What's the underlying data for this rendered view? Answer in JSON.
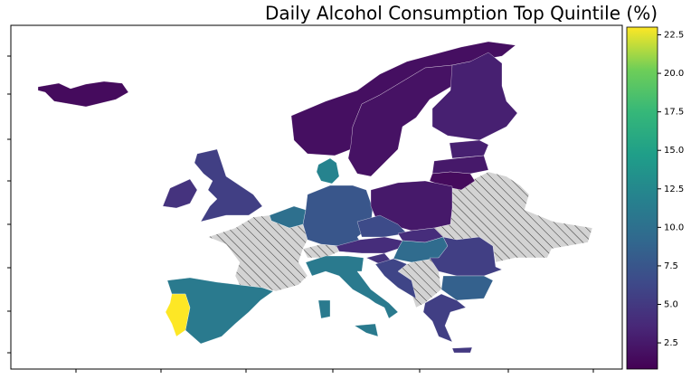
{
  "chart_data": {
    "type": "choropleth",
    "title": "Daily Alcohol Consumption Top Quintile (%)",
    "colormap": "viridis",
    "values": [
      1.5,
      1.8,
      2.0,
      3.0,
      3.0,
      2.5,
      1.5,
      12.0,
      5.5,
      4.5,
      10.0,
      7.5,
      2.5,
      6.5,
      4.0,
      4.0,
      9.5,
      5.5,
      8.5,
      5.5,
      5.0,
      11.0,
      11.0,
      11.0,
      4.5,
      6.0,
      11.0,
      23.0
    ],
    "clim": [
      0.8,
      23.0
    ],
    "cticks": [
      2.5,
      {
        "value": 5,
        "label": "5.0"
      },
      7.5,
      {
        "value": 10,
        "label": "10.0"
      },
      12.5,
      {
        "value": 15,
        "label": "15.0"
      },
      17.5,
      {
        "value": 20,
        "label": "20.0"
      },
      22.5
    ]
  }
}
